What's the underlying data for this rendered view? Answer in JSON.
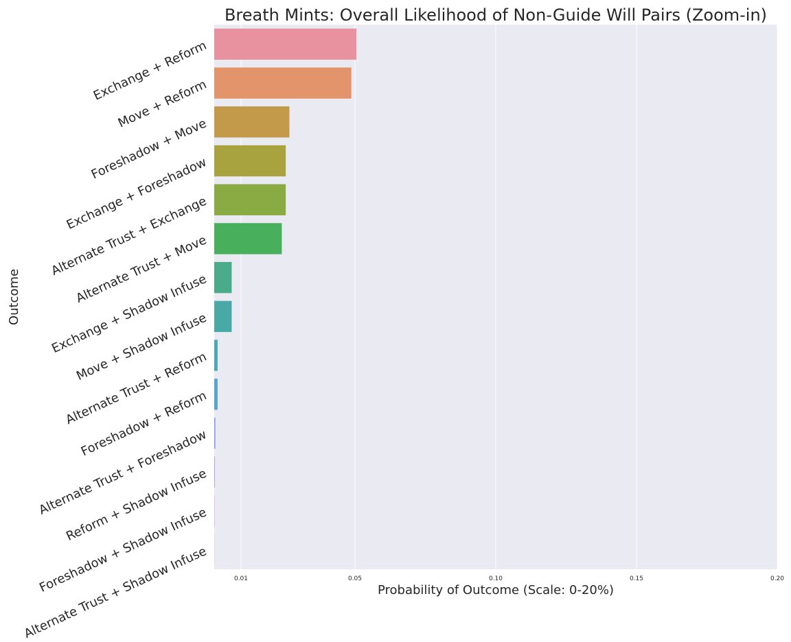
{
  "chart_data": {
    "type": "bar",
    "orientation": "horizontal",
    "title": "Breath Mints: Overall Likelihood of Non-Guide Will Pairs (Zoom-in)",
    "xlabel": "Probability of Outcome (Scale: 0-20%)",
    "ylabel": "Outcome",
    "xlim": [
      0,
      0.2
    ],
    "xticks": [
      0.01,
      0.05,
      0.1,
      0.15,
      0.2
    ],
    "xtick_labels": [
      "0.01",
      "0.05",
      "0.10",
      "0.15",
      "0.20"
    ],
    "grid": true,
    "categories": [
      "Exchange + Reform",
      "Move + Reform",
      "Foreshadow + Move",
      "Exchange + Foreshadow",
      "Alternate Trust + Exchange",
      "Alternate Trust + Move",
      "Exchange + Shadow Infuse",
      "Move + Shadow Infuse",
      "Alternate Trust + Reform",
      "Foreshadow + Reform",
      "Alternate Trust + Foreshadow",
      "Reform + Shadow Infuse",
      "Foreshadow + Shadow Infuse",
      "Alternate Trust + Shadow Infuse"
    ],
    "values": [
      0.0505,
      0.0487,
      0.0267,
      0.0254,
      0.0254,
      0.024,
      0.0062,
      0.0062,
      0.0012,
      0.0012,
      0.0004,
      0.0002,
      0.0001,
      5e-05
    ],
    "colors": [
      "#e8919f",
      "#e4946a",
      "#c29a4a",
      "#a8a23f",
      "#8aaa44",
      "#48b05d",
      "#4aab8a",
      "#49a9a6",
      "#4ba6bb",
      "#58a2d4",
      "#8a97e8",
      "#b48ae3",
      "#de85d8",
      "#e989c0"
    ],
    "plot_background": "#eaeaf2",
    "grid_color": "#ffffff"
  }
}
